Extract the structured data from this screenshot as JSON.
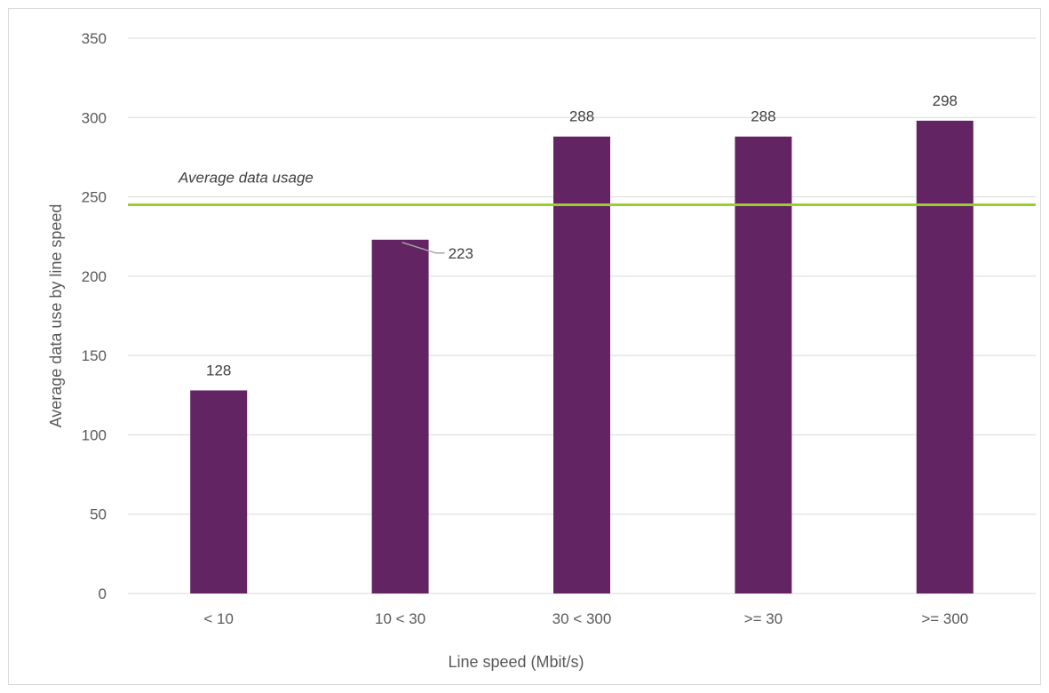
{
  "chart_data": {
    "type": "bar",
    "categories": [
      "< 10",
      "10 < 30",
      "30 < 300",
      ">= 30",
      ">= 300"
    ],
    "series": [
      {
        "values": [
          128,
          223,
          288,
          288,
          298
        ],
        "color": "#622463"
      }
    ],
    "data_labels": [
      "128",
      "223",
      "288",
      "288",
      "298"
    ],
    "xlabel": "Line speed (Mbit/s)",
    "ylabel": "Average data use by line speed",
    "ylim": [
      0,
      350
    ],
    "yticks": [
      0,
      50,
      100,
      150,
      200,
      250,
      300,
      350
    ],
    "ytick_labels": [
      "0",
      "50",
      "100",
      "150",
      "200",
      "250",
      "300",
      "350"
    ],
    "grid": true,
    "reference_line": {
      "label": "Average data usage",
      "value": 245,
      "color": "#9ACD32"
    }
  }
}
